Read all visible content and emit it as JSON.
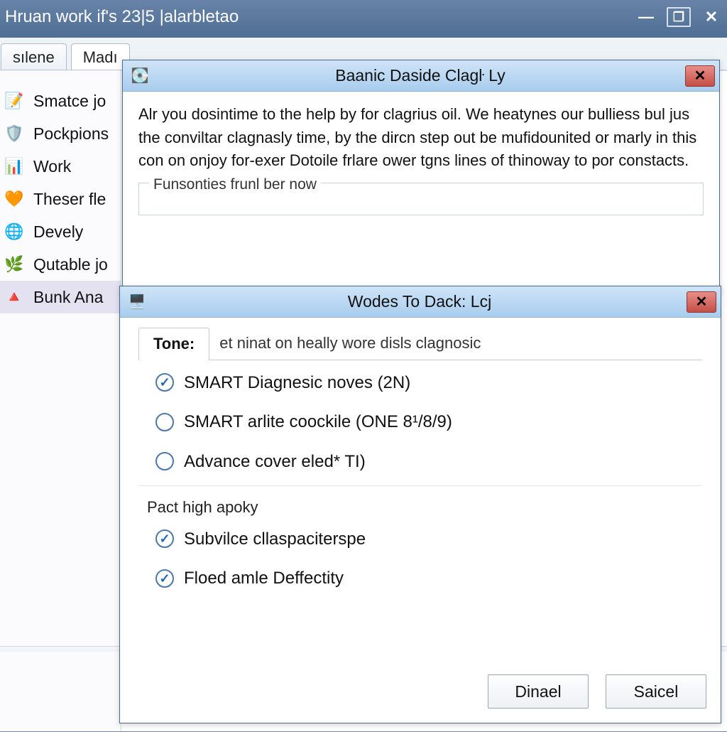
{
  "colors": {
    "titlebar_gradient_top": "#6a85a9",
    "titlebar_gradient_bottom": "#4f6e94",
    "dialog_titlebar_top": "#cfe4f7",
    "dialog_titlebar_bottom": "#a9cdee",
    "close_btn_top": "#e78e88",
    "close_btn_bottom": "#c54f47",
    "accent_check": "#1e66b3",
    "selected_row_bg": "#e4e2f0"
  },
  "main_window": {
    "title": "Hruan work if's 23|5 |alarbletao",
    "controls": {
      "minimize": "—",
      "restore": "❐",
      "close": "✕"
    },
    "tabs": [
      {
        "label": "sılene"
      },
      {
        "label": "Madı"
      }
    ],
    "sidebar": [
      {
        "icon": "📝",
        "label": "Smatce jo"
      },
      {
        "icon": "🛡️",
        "label": "Pockpions"
      },
      {
        "icon": "📊",
        "label": "Work"
      },
      {
        "icon": "🧡",
        "label": "Theser fle"
      },
      {
        "icon": "🌐",
        "label": "Devely"
      },
      {
        "icon": "🌿",
        "label": "Qutable jo"
      },
      {
        "icon": "🔺",
        "label": "Bunk Ana",
        "selected": true
      }
    ]
  },
  "dialog1": {
    "title": "Baanic Daside Clagŀ Ly",
    "body_text": "Alr you dosintime to the help by for clagrius oil. We heatynes our bulliess bul jus the conviltar clagnasly time, by the dircn step out be mufidounited or marly in this con on onjoy for-exer Dotoile frlare ower tgns lines of thinoway to por constacts.",
    "group_label": "Funsonties frunl ber now"
  },
  "dialog2": {
    "title": "Wodes To Dack: Lcj",
    "tab_label": "Tone:",
    "tab_desc": "et ninat on heally wore disls clagnosic",
    "radios": [
      {
        "label": "SMART Diagnesic noves (2N)",
        "checked": true
      },
      {
        "label": "SMART arlite coockile (ONE 8¹/8/9)",
        "checked": false
      },
      {
        "label": "Advance cover eled* TI)",
        "checked": false
      }
    ],
    "section_label": "Pact high apoky",
    "checks": [
      {
        "label": "Subvilce cllaspaciterspe",
        "checked": true
      },
      {
        "label": "Floed amle Deffectity",
        "checked": true
      }
    ],
    "buttons": {
      "ok": "Dinael",
      "cancel": "Saicel"
    }
  }
}
